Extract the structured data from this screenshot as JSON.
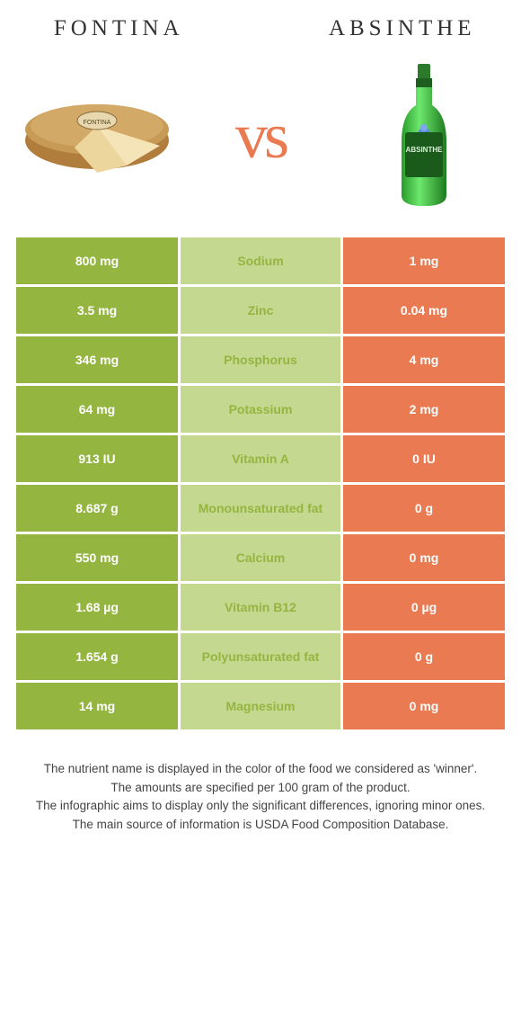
{
  "titleLeft": "Fontina",
  "titleRight": "Absinthe",
  "vs": "vs",
  "colors": {
    "left": "#95b541",
    "leftMidTint": "#c4d88f",
    "right": "#ea7a52",
    "rightMidTint": "#f4bca6",
    "vsText": "#ea7a52"
  },
  "rows": [
    {
      "left": "800 mg",
      "label": "Sodium",
      "right": "1 mg",
      "winner": "left"
    },
    {
      "left": "3.5 mg",
      "label": "Zinc",
      "right": "0.04 mg",
      "winner": "left"
    },
    {
      "left": "346 mg",
      "label": "Phosphorus",
      "right": "4 mg",
      "winner": "left"
    },
    {
      "left": "64 mg",
      "label": "Potassium",
      "right": "2 mg",
      "winner": "left"
    },
    {
      "left": "913 IU",
      "label": "Vitamin A",
      "right": "0 IU",
      "winner": "left"
    },
    {
      "left": "8.687 g",
      "label": "Monounsaturated fat",
      "right": "0 g",
      "winner": "left"
    },
    {
      "left": "550 mg",
      "label": "Calcium",
      "right": "0 mg",
      "winner": "left"
    },
    {
      "left": "1.68 µg",
      "label": "Vitamin B12",
      "right": "0 µg",
      "winner": "left"
    },
    {
      "left": "1.654 g",
      "label": "Polyunsaturated fat",
      "right": "0 g",
      "winner": "left"
    },
    {
      "left": "14 mg",
      "label": "Magnesium",
      "right": "0 mg",
      "winner": "left"
    }
  ],
  "footer": [
    "The nutrient name is displayed in the color of the food we considered as 'winner'.",
    "The amounts are specified per 100 gram of the product.",
    "The infographic aims to display only the significant differences, ignoring minor ones.",
    "The main source of information is USDA Food Composition Database."
  ]
}
